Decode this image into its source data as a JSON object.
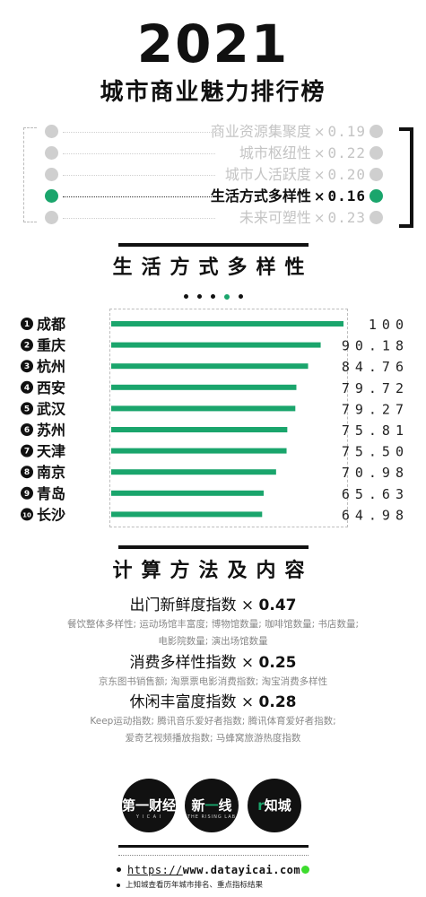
{
  "header": {
    "year": "2021",
    "title": "城市商业魅力排行榜"
  },
  "dimensions": [
    {
      "name": "商业资源集聚度",
      "times": "×",
      "weight": "0.19",
      "active": false
    },
    {
      "name": "城市枢纽性",
      "times": "×",
      "weight": "0.22",
      "active": false
    },
    {
      "name": "城市人活跃度",
      "times": "×",
      "weight": "0.20",
      "active": false
    },
    {
      "name": "生活方式多样性",
      "times": "×",
      "weight": "0.16",
      "active": true
    },
    {
      "name": "未来可塑性",
      "times": "×",
      "weight": "0.23",
      "active": false
    }
  ],
  "section1": {
    "title": "生活方式多样性",
    "pager_count": 5,
    "pager_active": 3
  },
  "chart_data": {
    "type": "bar",
    "orientation": "horizontal",
    "title": "生活方式多样性",
    "categories": [
      "成都",
      "重庆",
      "杭州",
      "西安",
      "武汉",
      "苏州",
      "天津",
      "南京",
      "青岛",
      "长沙"
    ],
    "ranks": [
      "1",
      "2",
      "3",
      "4",
      "5",
      "6",
      "7",
      "8",
      "9",
      "10"
    ],
    "values": [
      100,
      90.18,
      84.76,
      79.72,
      79.27,
      75.81,
      75.5,
      70.98,
      65.63,
      64.98
    ],
    "value_labels": [
      "100",
      "90.18",
      "84.76",
      "79.72",
      "79.27",
      "75.81",
      "75.50",
      "70.98",
      "65.63",
      "64.98"
    ],
    "xlim": [
      0,
      100
    ],
    "bar_color": "#1aa56c",
    "grid": false
  },
  "section2": {
    "title": "计算方法及内容",
    "items": [
      {
        "name": "出门新鲜度指数",
        "times": "×",
        "weight": "0.47",
        "desc": [
          "餐饮整体多样性; 运动场馆丰富度; 博物馆数量; 咖啡馆数量; 书店数量;",
          "电影院数量; 演出场馆数量"
        ]
      },
      {
        "name": "消费多样性指数",
        "times": "×",
        "weight": "0.25",
        "desc": [
          "京东图书销售额; 淘票票电影消费指数; 淘宝消费多样性"
        ]
      },
      {
        "name": "休闲丰富度指数",
        "times": "×",
        "weight": "0.28",
        "desc": [
          "Keep运动指数; 腾讯音乐爱好者指数; 腾讯体育爱好者指数;",
          "爱奇艺视频播放指数; 马蜂窝旅游热度指数"
        ]
      }
    ]
  },
  "logos": [
    {
      "text": "第一财经",
      "sub": "Y I C A I"
    },
    {
      "text_a": "新",
      "text_b": "一",
      "text_c": "线",
      "sub": "THE RISING LAB"
    },
    {
      "text_a": "",
      "text_b": "知城",
      "mark": "r"
    }
  ],
  "footer": {
    "url_proto": "https://",
    "url_host": "www.datayicai.com",
    "note": "上知城查看历年城市排名、重点指标结果"
  },
  "colors": {
    "accent": "#1aa56c",
    "inactive": "#c4c4c4",
    "ink": "#111111"
  }
}
